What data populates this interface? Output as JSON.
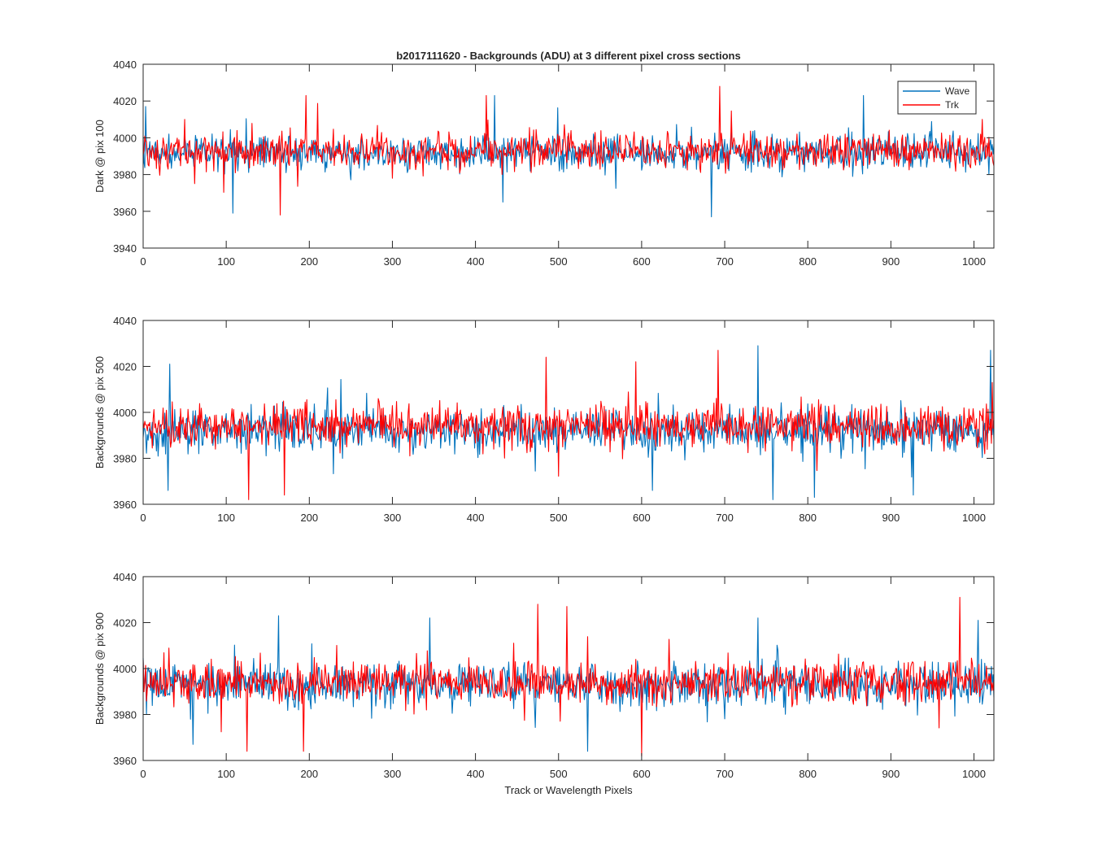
{
  "figure": {
    "title": "b2017111620 - Backgrounds (ADU) at 3 different pixel cross sections",
    "xlabel": "Track or Wavelength Pixels"
  },
  "colors": {
    "wave": "#0072BD",
    "trk": "#FF0000",
    "axis": "#262626",
    "background": "#ffffff"
  },
  "legend": {
    "entries": [
      "Wave",
      "Trk"
    ],
    "placement": "top-right of first subplot"
  },
  "chart_data": [
    {
      "type": "line",
      "title": "b2017111620 - Backgrounds (ADU) at 3 different pixel cross sections",
      "xlabel": "",
      "ylabel": "Dark @ pix 100",
      "xlim": [
        0,
        1024
      ],
      "ylim": [
        3940,
        4040
      ],
      "xticks": [
        0,
        100,
        200,
        300,
        400,
        500,
        600,
        700,
        800,
        900,
        1000
      ],
      "yticks": [
        3940,
        3960,
        3980,
        4000,
        4020,
        4040
      ],
      "grid": false,
      "legend": "top-right",
      "series": [
        {
          "name": "Wave",
          "color": "#0072BD",
          "mean": 3992,
          "spread": 8,
          "approx_min": 3957,
          "approx_max": 4023,
          "spikes": [
            [
              3,
              4017
            ],
            [
              108,
              3959
            ],
            [
              433,
              3965
            ],
            [
              423,
              4023
            ],
            [
              684,
              3957
            ],
            [
              867,
              4023
            ],
            [
              1018,
              3980
            ]
          ]
        },
        {
          "name": "Trk",
          "color": "#FF0000",
          "mean": 3993,
          "spread": 8,
          "approx_min": 3958,
          "approx_max": 4028,
          "spikes": [
            [
              165,
              3958
            ],
            [
              413,
              4023
            ],
            [
              694,
              4028
            ],
            [
              196,
              4023
            ],
            [
              1010,
              4010
            ]
          ]
        }
      ]
    },
    {
      "type": "line",
      "title": "",
      "xlabel": "",
      "ylabel": "Backgrounds @ pix 500",
      "xlim": [
        0,
        1024
      ],
      "ylim": [
        3960,
        4040
      ],
      "xticks": [
        0,
        100,
        200,
        300,
        400,
        500,
        600,
        700,
        800,
        900,
        1000
      ],
      "yticks": [
        3960,
        3980,
        4000,
        4020,
        4040
      ],
      "grid": false,
      "series": [
        {
          "name": "Wave",
          "color": "#0072BD",
          "mean": 3992,
          "spread": 8,
          "approx_min": 3962,
          "approx_max": 4029,
          "spikes": [
            [
              32,
              4021
            ],
            [
              30,
              3966
            ],
            [
              758,
              3962
            ],
            [
              808,
              3963
            ],
            [
              740,
              4029
            ],
            [
              1020,
              4027
            ],
            [
              927,
              3964
            ]
          ]
        },
        {
          "name": "Trk",
          "color": "#FF0000",
          "mean": 3994,
          "spread": 8,
          "approx_min": 3962,
          "approx_max": 4027,
          "spikes": [
            [
              127,
              3962
            ],
            [
              170,
              3964
            ],
            [
              485,
              4024
            ],
            [
              593,
              4022
            ],
            [
              692,
              4027
            ],
            [
              1022,
              4013
            ]
          ]
        }
      ]
    },
    {
      "type": "line",
      "title": "",
      "xlabel": "Track or Wavelength Pixels",
      "ylabel": "Backgrounds @ pix 900",
      "xlim": [
        0,
        1024
      ],
      "ylim": [
        3960,
        4040
      ],
      "xticks": [
        0,
        100,
        200,
        300,
        400,
        500,
        600,
        700,
        800,
        900,
        1000
      ],
      "yticks": [
        3960,
        3980,
        4000,
        4020,
        4040
      ],
      "grid": false,
      "series": [
        {
          "name": "Wave",
          "color": "#0072BD",
          "mean": 3993,
          "spread": 8,
          "approx_min": 3963,
          "approx_max": 4023,
          "spikes": [
            [
              60,
              3967
            ],
            [
              163,
              4023
            ],
            [
              345,
              4022
            ],
            [
              535,
              3964
            ],
            [
              740,
              4022
            ],
            [
              1005,
              4021
            ]
          ]
        },
        {
          "name": "Trk",
          "color": "#FF0000",
          "mean": 3994,
          "spread": 8,
          "approx_min": 3962,
          "approx_max": 4031,
          "spikes": [
            [
              125,
              3964
            ],
            [
              193,
              3964
            ],
            [
              475,
              4028
            ],
            [
              510,
              4027
            ],
            [
              600,
              3962
            ],
            [
              983,
              4031
            ]
          ]
        }
      ]
    }
  ]
}
